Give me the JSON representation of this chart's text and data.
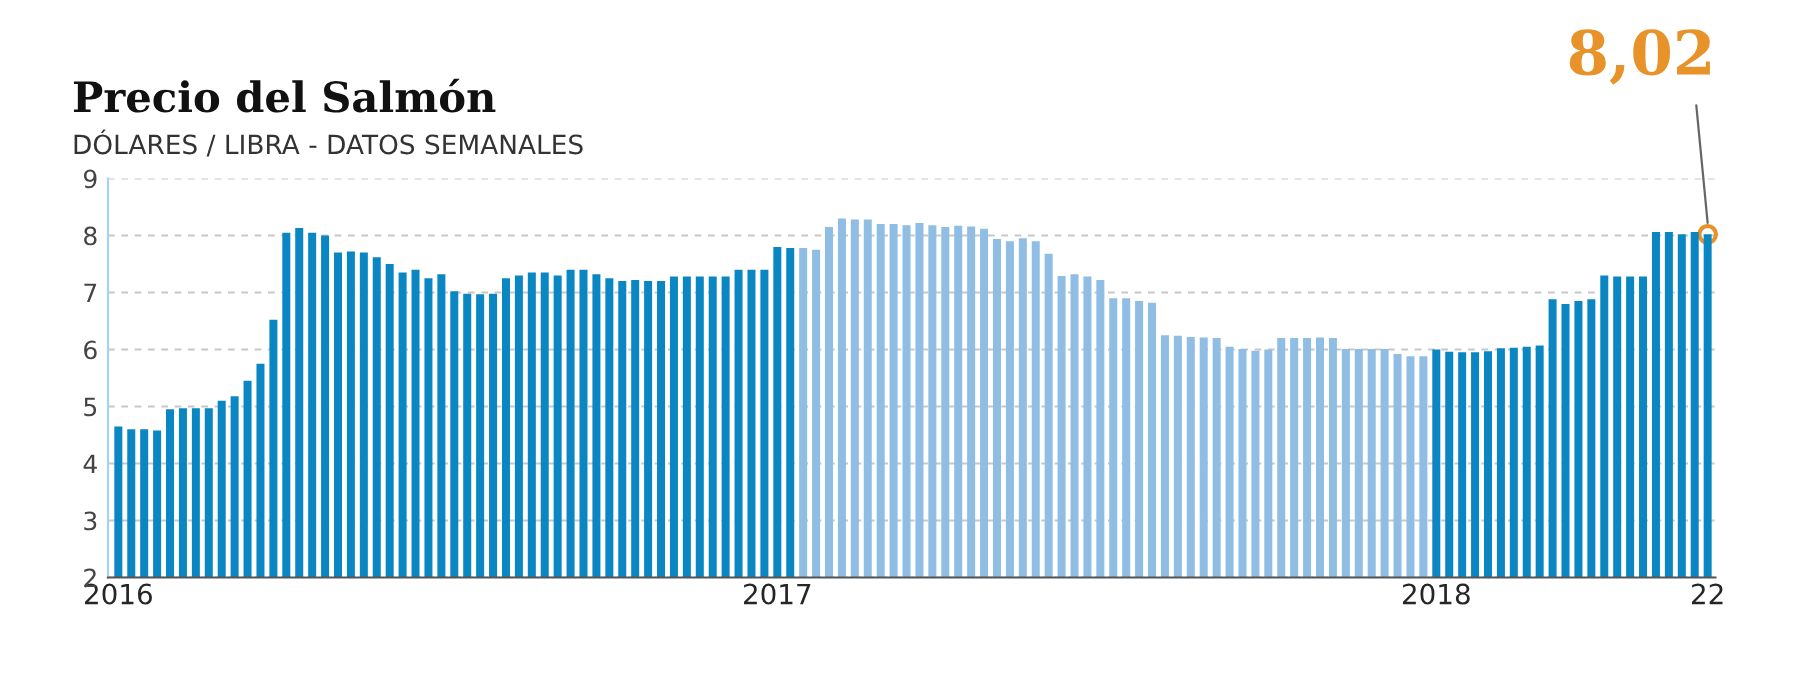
{
  "chart_data": {
    "type": "bar",
    "title": "Precio del Salmón",
    "subtitle": "DÓLARES / LIBRA - DATOS SEMANALES",
    "categories": [
      "2016",
      null,
      null,
      null,
      null,
      null,
      null,
      null,
      null,
      null,
      null,
      null,
      null,
      null,
      null,
      null,
      null,
      null,
      null,
      null,
      null,
      null,
      null,
      null,
      null,
      null,
      null,
      null,
      null,
      null,
      null,
      null,
      null,
      null,
      null,
      null,
      null,
      null,
      null,
      null,
      null,
      null,
      null,
      null,
      null,
      null,
      null,
      null,
      null,
      null,
      null,
      "2017",
      null,
      null,
      null,
      null,
      null,
      null,
      null,
      null,
      null,
      null,
      null,
      null,
      null,
      null,
      null,
      null,
      null,
      null,
      null,
      null,
      null,
      null,
      null,
      null,
      null,
      null,
      null,
      null,
      null,
      null,
      null,
      null,
      null,
      null,
      null,
      null,
      null,
      null,
      null,
      null,
      null,
      null,
      null,
      null,
      null,
      null,
      null,
      null,
      null,
      null,
      "2018",
      null,
      null,
      null,
      null,
      null,
      null,
      null,
      null,
      null,
      null,
      null,
      null,
      null,
      null,
      null,
      null,
      null,
      null,
      null,
      null,
      "22"
    ],
    "values": [
      4.65,
      4.6,
      4.6,
      4.58,
      4.95,
      4.97,
      4.97,
      4.97,
      5.1,
      5.18,
      5.45,
      5.75,
      6.52,
      8.05,
      8.13,
      8.05,
      8.0,
      7.7,
      7.72,
      7.7,
      7.62,
      7.5,
      7.35,
      7.4,
      7.25,
      7.32,
      7.02,
      6.98,
      6.97,
      6.98,
      7.25,
      7.3,
      7.35,
      7.35,
      7.3,
      7.4,
      7.4,
      7.32,
      7.25,
      7.2,
      7.22,
      7.2,
      7.2,
      7.28,
      7.28,
      7.28,
      7.28,
      7.28,
      7.4,
      7.4,
      7.4,
      7.8,
      7.78,
      7.78,
      7.75,
      8.15,
      8.3,
      8.28,
      8.28,
      8.2,
      8.2,
      8.18,
      8.22,
      8.18,
      8.15,
      8.17,
      8.16,
      8.12,
      7.94,
      7.9,
      7.95,
      7.9,
      7.68,
      7.29,
      7.32,
      7.28,
      7.22,
      6.9,
      6.9,
      6.85,
      6.82,
      6.25,
      6.24,
      6.22,
      6.21,
      6.2,
      6.05,
      6.01,
      5.98,
      6.0,
      6.2,
      6.2,
      6.2,
      6.21,
      6.2,
      6.01,
      6.01,
      6.01,
      6.01,
      5.92,
      5.88,
      5.88,
      6.0,
      5.96,
      5.95,
      5.95,
      5.97,
      6.02,
      6.03,
      6.05,
      6.07,
      6.88,
      6.8,
      6.85,
      6.88,
      7.3,
      7.28,
      7.28,
      7.28,
      8.06,
      8.06,
      8.02,
      8.06,
      8.02
    ],
    "colors": [
      "#0a87c2",
      "#0a87c2",
      "#0a87c2",
      "#0a87c2",
      "#0a87c2",
      "#0a87c2",
      "#0a87c2",
      "#0a87c2",
      "#0a87c2",
      "#0a87c2",
      "#0a87c2",
      "#0a87c2",
      "#0a87c2",
      "#0a87c2",
      "#0a87c2",
      "#0a87c2",
      "#0a87c2",
      "#0a87c2",
      "#0a87c2",
      "#0a87c2",
      "#0a87c2",
      "#0a87c2",
      "#0a87c2",
      "#0a87c2",
      "#0a87c2",
      "#0a87c2",
      "#0a87c2",
      "#0a87c2",
      "#0a87c2",
      "#0a87c2",
      "#0a87c2",
      "#0a87c2",
      "#0a87c2",
      "#0a87c2",
      "#0a87c2",
      "#0a87c2",
      "#0a87c2",
      "#0a87c2",
      "#0a87c2",
      "#0a87c2",
      "#0a87c2",
      "#0a87c2",
      "#0a87c2",
      "#0a87c2",
      "#0a87c2",
      "#0a87c2",
      "#0a87c2",
      "#0a87c2",
      "#0a87c2",
      "#0a87c2",
      "#0a87c2",
      "#0a87c2",
      "#0a87c2",
      "#8fbde3",
      "#8fbde3",
      "#8fbde3",
      "#8fbde3",
      "#8fbde3",
      "#8fbde3",
      "#8fbde3",
      "#8fbde3",
      "#8fbde3",
      "#8fbde3",
      "#8fbde3",
      "#8fbde3",
      "#8fbde3",
      "#8fbde3",
      "#8fbde3",
      "#8fbde3",
      "#8fbde3",
      "#8fbde3",
      "#8fbde3",
      "#8fbde3",
      "#8fbde3",
      "#8fbde3",
      "#8fbde3",
      "#8fbde3",
      "#8fbde3",
      "#8fbde3",
      "#8fbde3",
      "#8fbde3",
      "#8fbde3",
      "#8fbde3",
      "#8fbde3",
      "#8fbde3",
      "#8fbde3",
      "#8fbde3",
      "#8fbde3",
      "#8fbde3",
      "#8fbde3",
      "#8fbde3",
      "#8fbde3",
      "#8fbde3",
      "#8fbde3",
      "#8fbde3",
      "#8fbde3",
      "#8fbde3",
      "#8fbde3",
      "#8fbde3",
      "#8fbde3",
      "#8fbde3",
      "#8fbde3",
      "#0a87c2",
      "#0a87c2",
      "#0a87c2",
      "#0a87c2",
      "#0a87c2",
      "#0a87c2",
      "#0a87c2",
      "#0a87c2",
      "#0a87c2",
      "#0a87c2",
      "#0a87c2",
      "#0a87c2",
      "#0a87c2",
      "#0a87c2",
      "#0a87c2",
      "#0a87c2",
      "#0a87c2",
      "#0a87c2",
      "#0a87c2",
      "#0a87c2",
      "#0a87c2",
      "#0a87c2"
    ],
    "ylim": [
      2,
      9
    ],
    "yticks": [
      2,
      3,
      4,
      5,
      6,
      7,
      8,
      9
    ],
    "grid": "y",
    "annotations": [
      {
        "text": "8,02",
        "x": "22",
        "y": 8.02
      }
    ]
  }
}
